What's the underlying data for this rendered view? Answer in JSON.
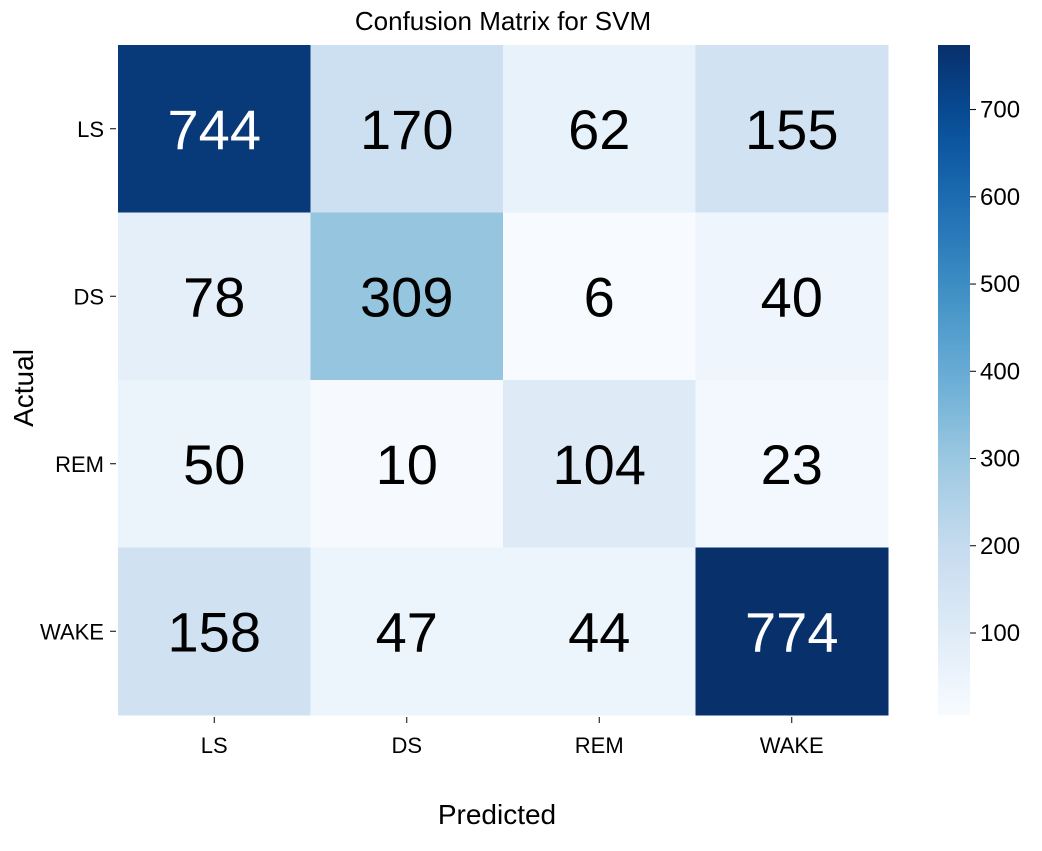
{
  "chart_data": {
    "type": "heatmap",
    "title": "Confusion Matrix for SVM",
    "xlabel": "Predicted",
    "ylabel": "Actual",
    "x_categories": [
      "LS",
      "DS",
      "REM",
      "WAKE"
    ],
    "y_categories": [
      "LS",
      "DS",
      "REM",
      "WAKE"
    ],
    "values": [
      [
        744,
        170,
        62,
        155
      ],
      [
        78,
        309,
        6,
        40
      ],
      [
        50,
        10,
        104,
        23
      ],
      [
        158,
        47,
        44,
        774
      ]
    ],
    "colorbar": {
      "min": 6,
      "max": 774,
      "ticks": [
        100,
        200,
        300,
        400,
        500,
        600,
        700
      ],
      "colormap": "Blues"
    },
    "colors": {
      "low": "#f7fbff",
      "high": "#08306b",
      "text_dark": "#000000",
      "text_light": "#ffffff"
    }
  }
}
